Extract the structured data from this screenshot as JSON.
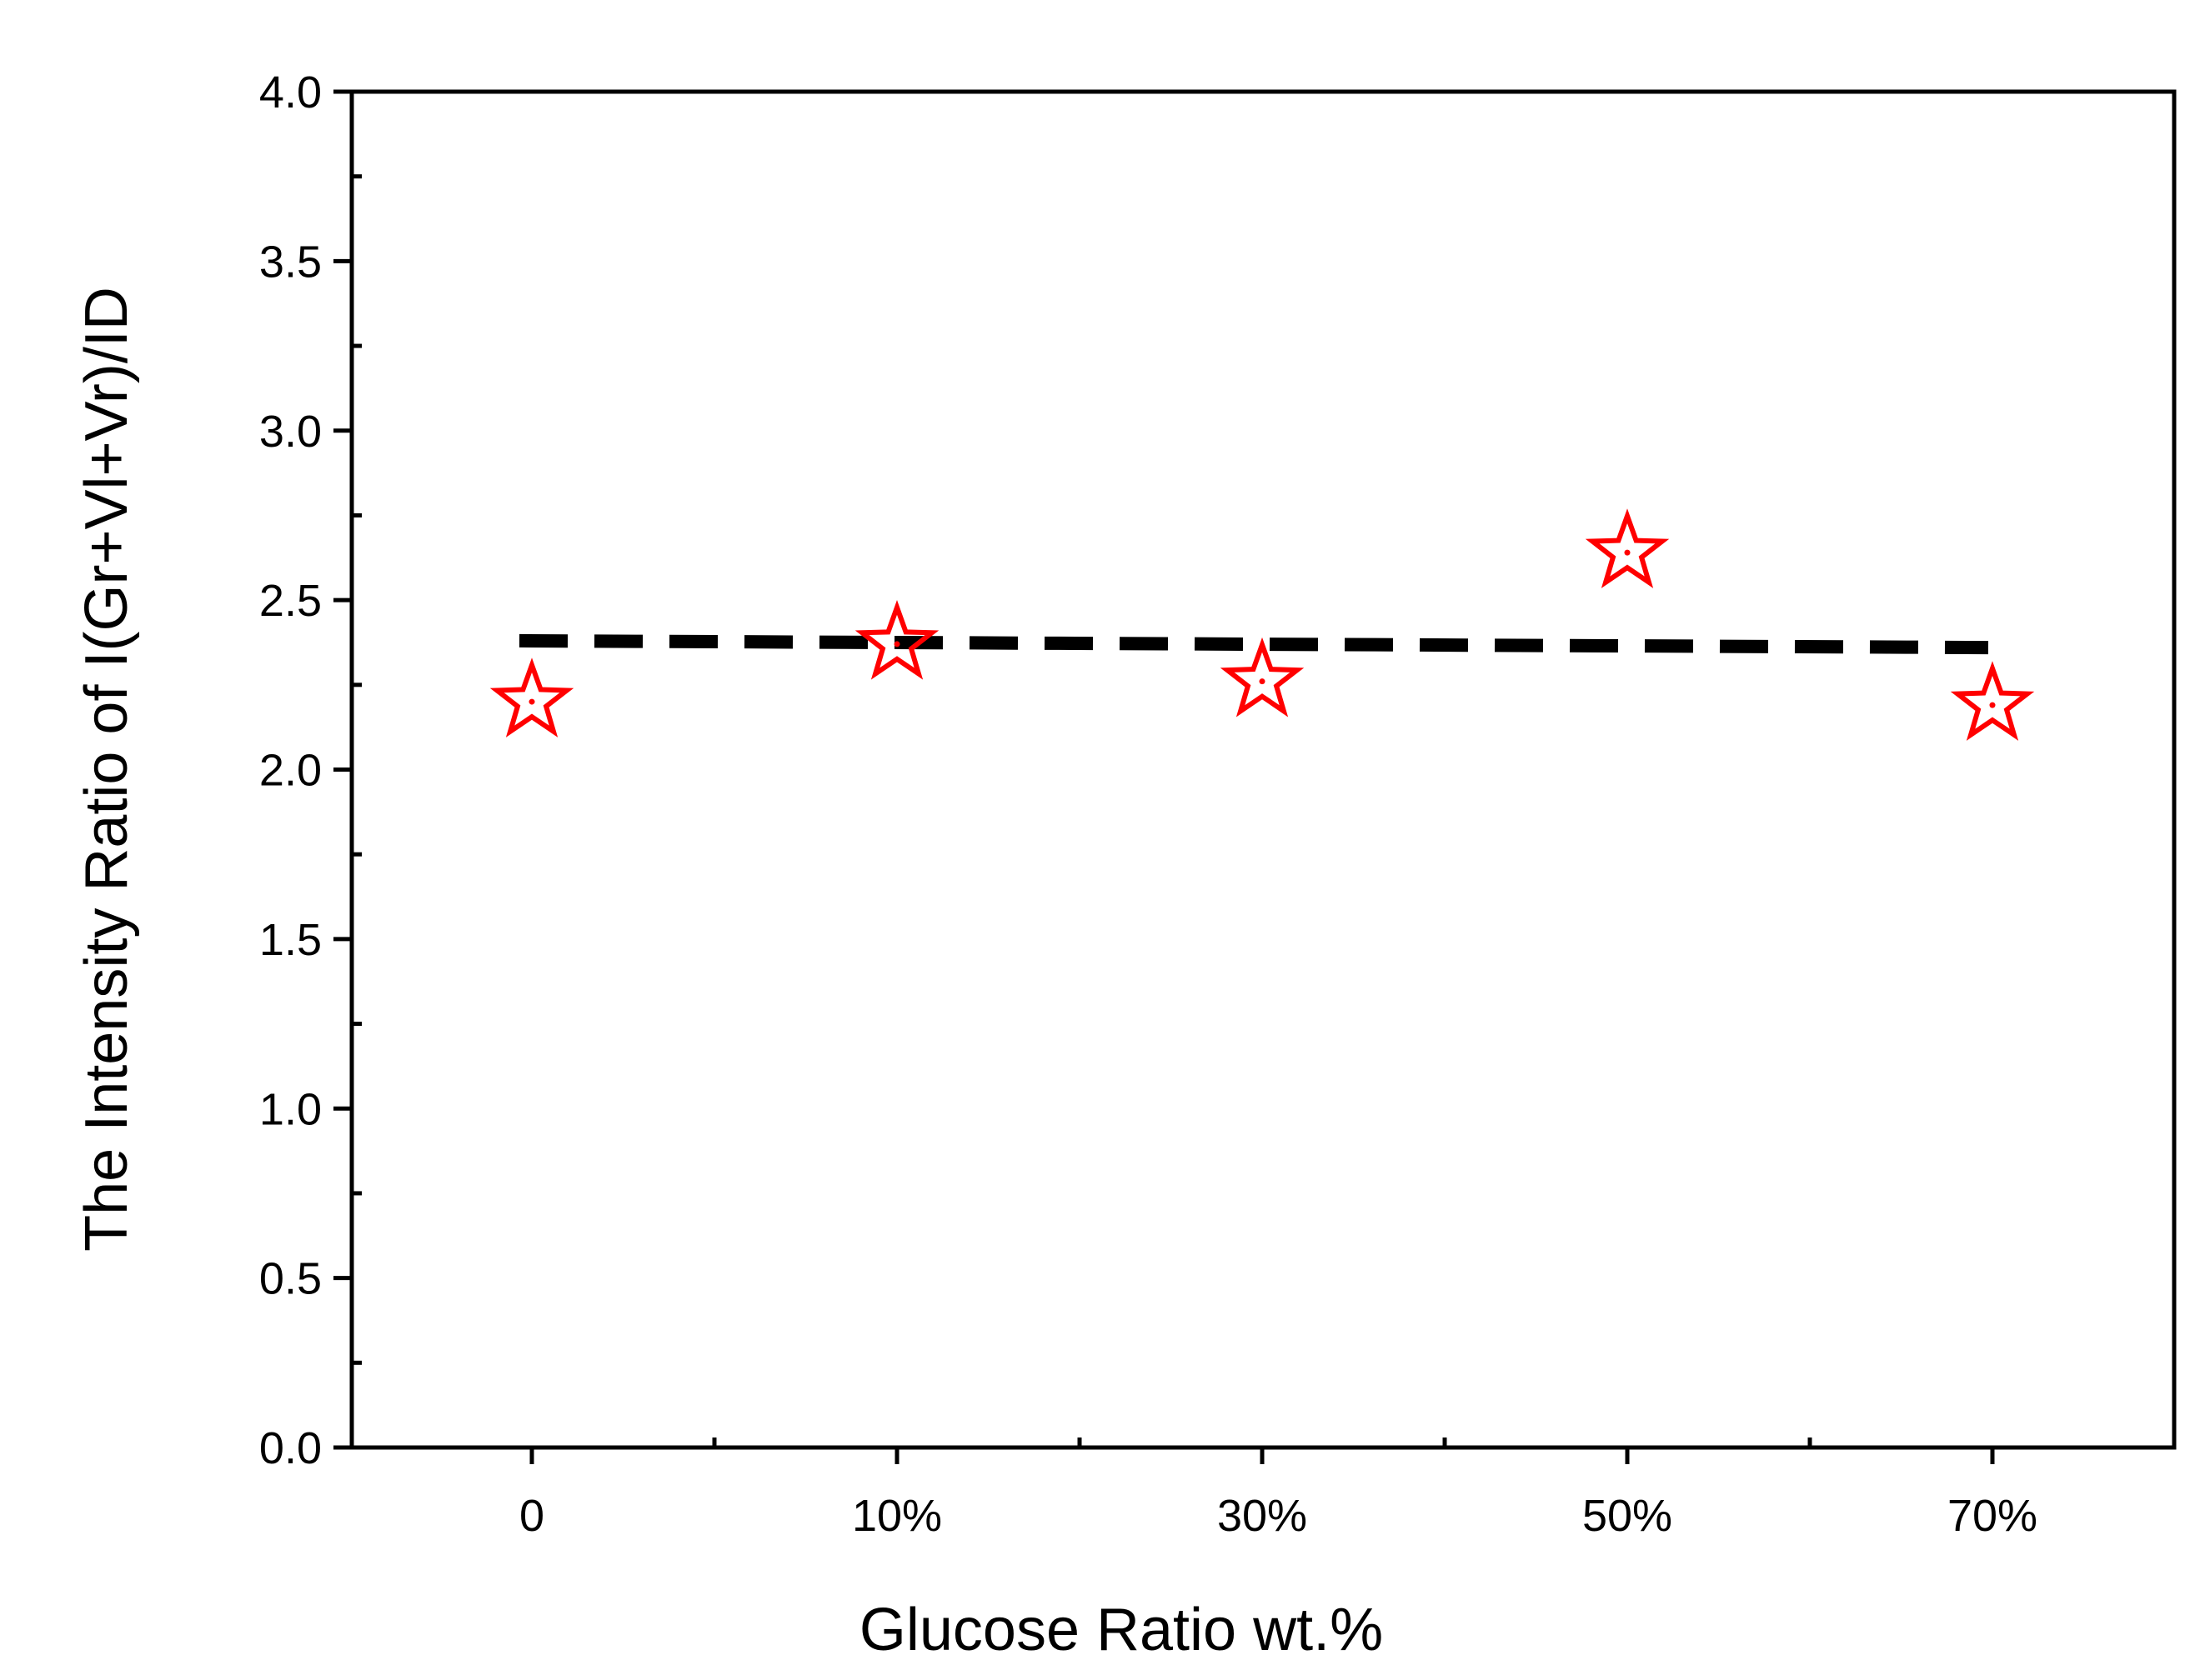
{
  "chart_data": {
    "type": "scatter",
    "title": "",
    "xlabel": "Glucose Ratio wt.%",
    "ylabel": "The Intensity Ratio of  I(Gr+Vl+Vr)/ID",
    "categories": [
      "0",
      "10%",
      "30%",
      "50%",
      "70%"
    ],
    "ylim": [
      0.0,
      4.0
    ],
    "yticks": [
      "0.0",
      "0.5",
      "1.0",
      "1.5",
      "2.0",
      "2.5",
      "3.0",
      "3.5",
      "4.0"
    ],
    "series": [
      {
        "marker": "open-star",
        "color": "#ff0000",
        "values": [
          2.21,
          2.38,
          2.27,
          2.65,
          2.2
        ]
      }
    ],
    "fit_line": {
      "style": "dashed",
      "color": "#000000",
      "start": 2.38,
      "end": 2.36
    },
    "grid": false,
    "legend": "none"
  }
}
